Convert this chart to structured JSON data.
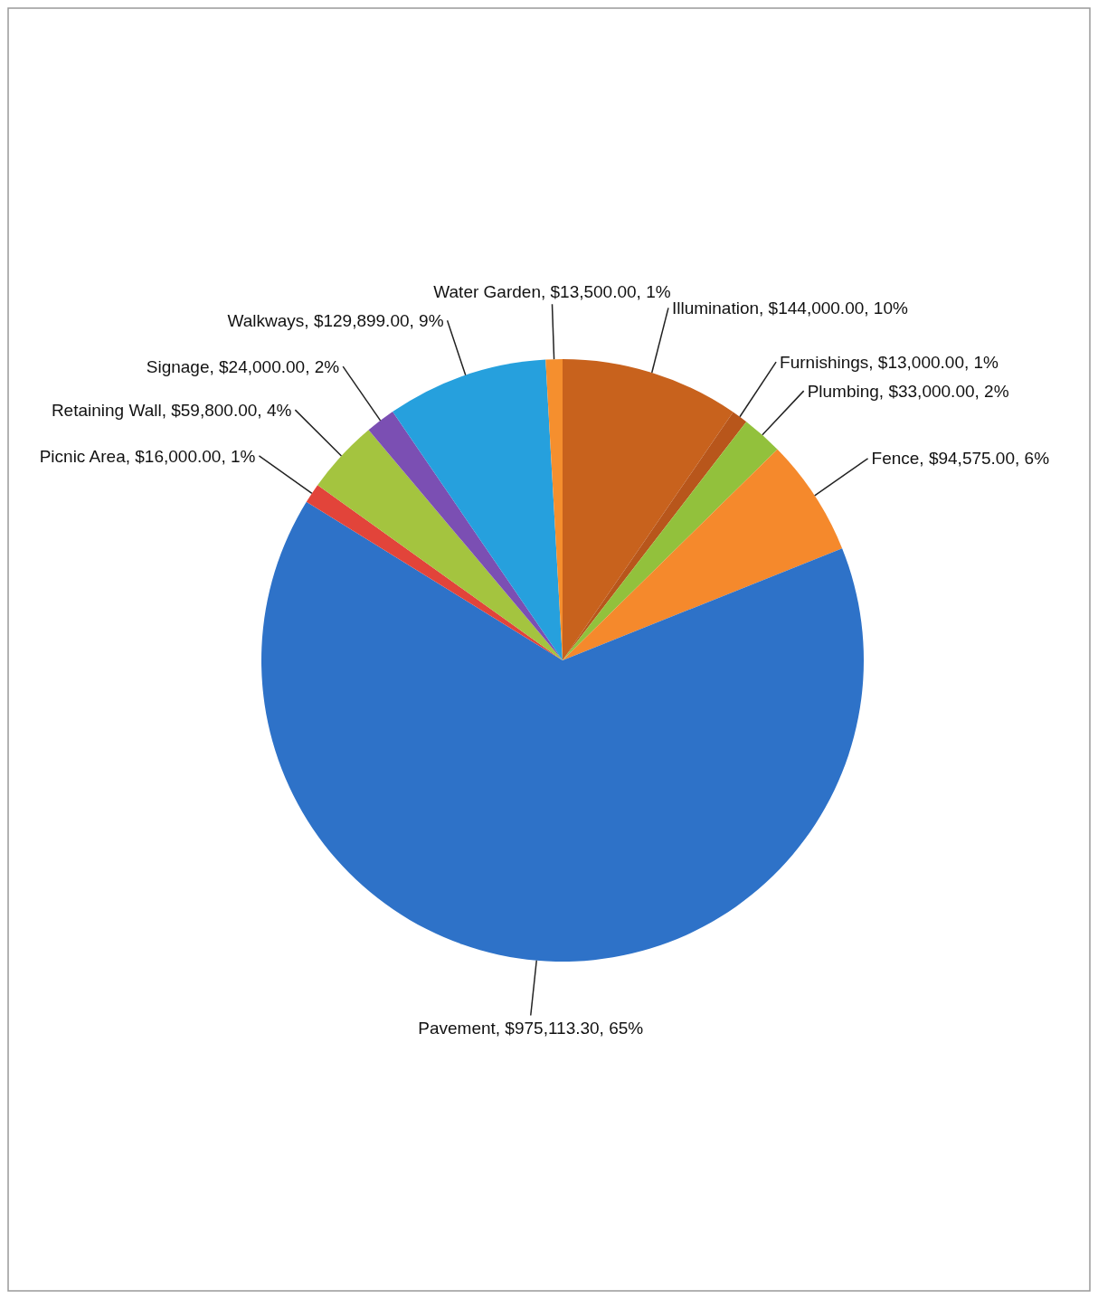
{
  "chart_data": {
    "type": "pie",
    "categories": [
      "Illumination",
      "Furnishings",
      "Plumbing",
      "Fence",
      "Pavement",
      "Picnic Area",
      "Retaining Wall",
      "Signage",
      "Walkways",
      "Water Garden"
    ],
    "values": [
      144000,
      13000,
      33000,
      94575,
      975113.3,
      16000,
      59800,
      24000,
      129899,
      13500
    ],
    "colors": [
      "#c8621d",
      "#b8561b",
      "#92c13c",
      "#f5892c",
      "#2e72c8",
      "#e2443a",
      "#a4c43f",
      "#7b4fb3",
      "#26a0dd",
      "#f58f2e"
    ],
    "value_labels": [
      "$144,000.00, 10%",
      "$13,000.00, 1%",
      "$33,000.00, 2%",
      "$94,575.00, 6%",
      "$975,113.30, 65%",
      "$16,000.00, 1%",
      "$59,800.00, 4%",
      "$24,000.00, 2%",
      "$129,899.00, 9%",
      "$13,500.00, 1%"
    ]
  }
}
